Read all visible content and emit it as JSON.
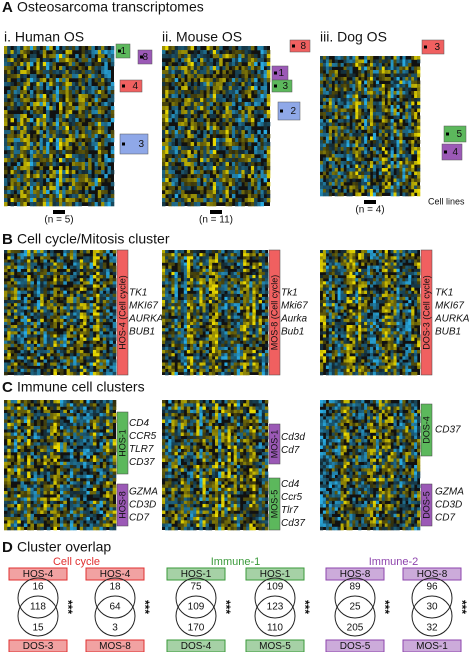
{
  "panel_a": {
    "letter": "A",
    "title": "Osteosarcoma transcriptomes",
    "species": [
      {
        "title": "i. Human OS",
        "n_label": "(n = 5)",
        "tags": [
          {
            "label": "1",
            "color": "#5cb85c"
          },
          {
            "label": "8",
            "color": "#9b59b6"
          },
          {
            "label": "4",
            "color": "#f06060"
          },
          {
            "label": "3",
            "color": "#8fa8e8"
          }
        ]
      },
      {
        "title": "ii. Mouse OS",
        "n_label": "(n = 11)",
        "tags": [
          {
            "label": "8",
            "color": "#f06060"
          },
          {
            "label": "1",
            "color": "#9b59b6"
          },
          {
            "label": "3",
            "color": "#5cb85c"
          },
          {
            "label": "2",
            "color": "#8fa8e8"
          }
        ]
      },
      {
        "title": "iii. Dog OS",
        "n_label": "(n = 4)",
        "extra_label": "Cell lines",
        "tags": [
          {
            "label": "3",
            "color": "#f06060"
          },
          {
            "label": "5",
            "color": "#5cb85c"
          },
          {
            "label": "4",
            "color": "#9b59b6"
          }
        ]
      }
    ]
  },
  "panel_b": {
    "letter": "B",
    "title": "Cell cycle/Mitosis cluster",
    "species": [
      {
        "bars": [
          {
            "label": "HOS-4 (Cell cycle)",
            "color": "#f06060",
            "genes": [
              "TK1",
              "MKI67",
              "AURKA",
              "BUB1"
            ]
          }
        ]
      },
      {
        "bars": [
          {
            "label": "MOS-8 (Cell cycle)",
            "color": "#f06060",
            "genes": [
              "Tk1",
              "Mki67",
              "Aurka",
              "Bub1"
            ]
          }
        ]
      },
      {
        "bars": [
          {
            "label": "DOS-3 (Cell cycle)",
            "color": "#f06060",
            "genes": [
              "TK1",
              "MKI67",
              "AURKA",
              "BUB1"
            ]
          }
        ]
      }
    ]
  },
  "panel_c": {
    "letter": "C",
    "title": "Immune cell clusters",
    "species": [
      {
        "bars": [
          {
            "label": "HOS-1",
            "color": "#5cb85c",
            "genes": [
              "CD4",
              "CCR5",
              "TLR7",
              "CD37"
            ]
          },
          {
            "label": "HOS-8",
            "color": "#9b59b6",
            "genes": [
              "GZMA",
              "CD3D",
              "CD7"
            ]
          }
        ]
      },
      {
        "bars": [
          {
            "label": "MOS-1",
            "color": "#9b59b6",
            "genes": [
              "Cd3d",
              "Cd7"
            ]
          },
          {
            "label": "MOS-5",
            "color": "#5cb85c",
            "genes": [
              "Cd4",
              "Ccr5",
              "Tlr7",
              "Cd37"
            ]
          }
        ]
      },
      {
        "bars": [
          {
            "label": "DOS-4",
            "color": "#5cb85c",
            "genes": [
              "CD37"
            ]
          },
          {
            "label": "DOS-5",
            "color": "#9b59b6",
            "genes": [
              "GZMA",
              "CD3D",
              "CD7"
            ]
          }
        ]
      }
    ]
  },
  "panel_d": {
    "letter": "D",
    "title": "Cluster overlap",
    "groups": [
      {
        "label": "Cell cycle",
        "color": "#e03030",
        "venns": [
          {
            "top": "HOS-4",
            "bottom": "DOS-3",
            "top_only": "16",
            "both": "118",
            "bottom_only": "15",
            "significance": "***"
          },
          {
            "top": "HOS-4",
            "bottom": "MOS-8",
            "top_only": "18",
            "both": "64",
            "bottom_only": "3",
            "significance": "***"
          }
        ]
      },
      {
        "label": "Immune-1",
        "color": "#3a9a3a",
        "venns": [
          {
            "top": "HOS-1",
            "bottom": "DOS-4",
            "top_only": "75",
            "both": "109",
            "bottom_only": "170",
            "significance": "***"
          },
          {
            "top": "HOS-1",
            "bottom": "MOS-5",
            "top_only": "109",
            "both": "123",
            "bottom_only": "110",
            "significance": "***"
          }
        ]
      },
      {
        "label": "Immune-2",
        "color": "#8e44ad",
        "venns": [
          {
            "top": "HOS-8",
            "bottom": "DOS-5",
            "top_only": "89",
            "both": "25",
            "bottom_only": "205",
            "significance": "***"
          },
          {
            "top": "HOS-8",
            "bottom": "MOS-1",
            "top_only": "96",
            "both": "30",
            "bottom_only": "32",
            "significance": "***"
          }
        ]
      }
    ]
  }
}
